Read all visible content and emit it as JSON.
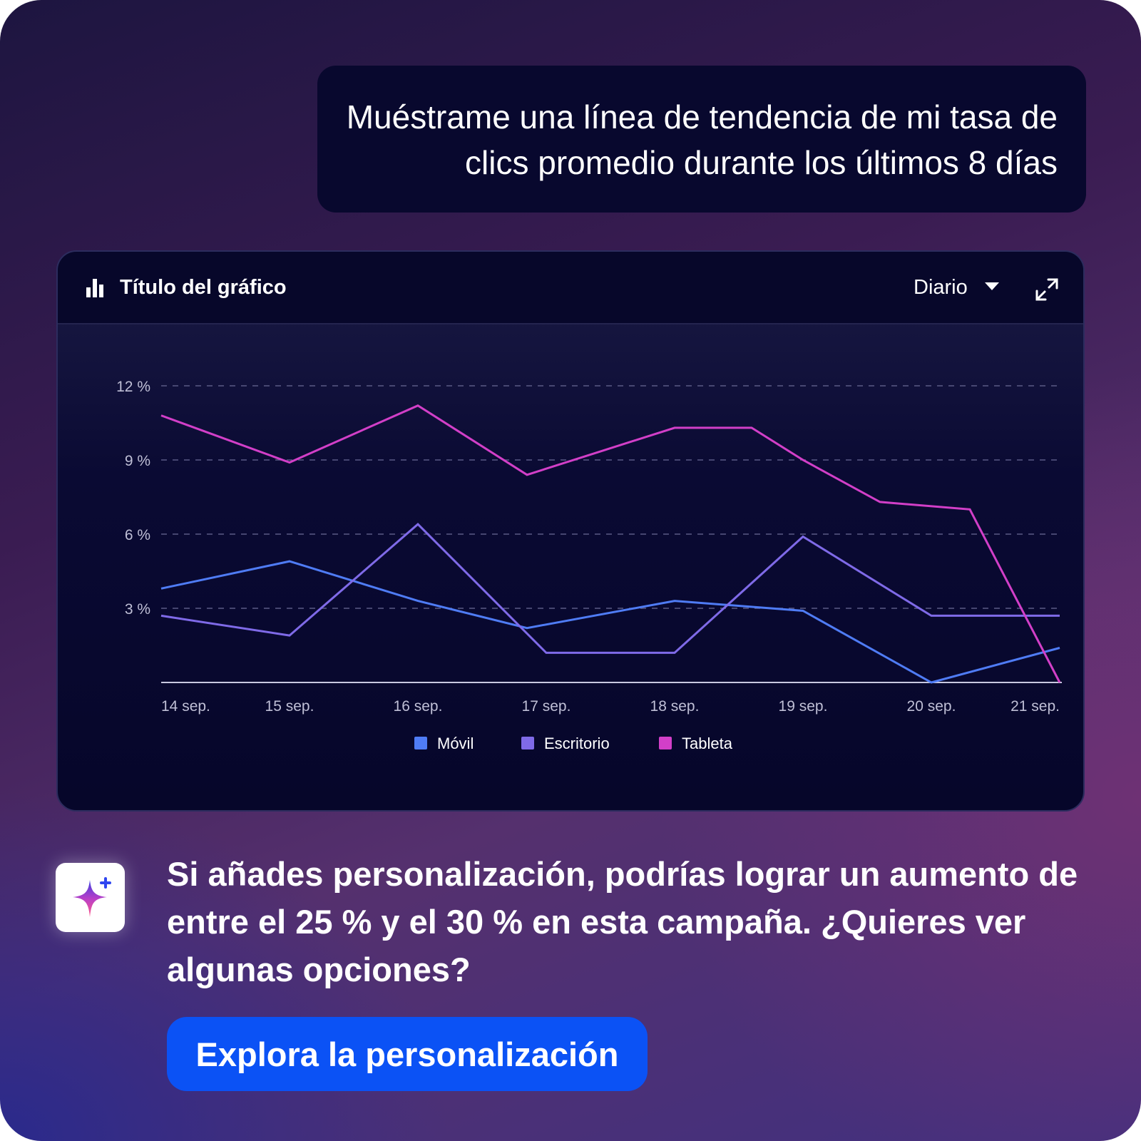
{
  "user_prompt": "Muéstrame una línea de tendencia de mi tasa de clics promedio durante los últimos 8 días",
  "chart_card": {
    "title": "Título del gráfico",
    "period_selected": "Diario"
  },
  "chart_data": {
    "type": "line",
    "title": "Título del gráfico",
    "x": [
      "14 sep.",
      "15 sep.",
      "16 sep.",
      "17 sep.",
      "18 sep.",
      "19 sep.",
      "20 sep.",
      "21 sep."
    ],
    "y_ticks": [
      "3 %",
      "6 %",
      "9 %",
      "12 %"
    ],
    "ylim": [
      0,
      12
    ],
    "grid": "dashed horizontal",
    "legend_position": "bottom",
    "series": [
      {
        "name": "Móvil",
        "color": "#4f7cf5",
        "points": [
          [
            0,
            3.8
          ],
          [
            1,
            4.9
          ],
          [
            2,
            3.3
          ],
          [
            2.85,
            2.2
          ],
          [
            4,
            3.3
          ],
          [
            5,
            2.9
          ],
          [
            6,
            0
          ],
          [
            7,
            1.4
          ]
        ]
      },
      {
        "name": "Escritorio",
        "color": "#7f6ae8",
        "points": [
          [
            0,
            2.7
          ],
          [
            1,
            1.9
          ],
          [
            2,
            6.4
          ],
          [
            3,
            1.2
          ],
          [
            4,
            1.2
          ],
          [
            5,
            5.9
          ],
          [
            6,
            2.7
          ],
          [
            7,
            2.7
          ]
        ]
      },
      {
        "name": "Tableta",
        "color": "#d23fc8",
        "points": [
          [
            0,
            10.8
          ],
          [
            1,
            8.9
          ],
          [
            2,
            11.2
          ],
          [
            2.85,
            8.4
          ],
          [
            4,
            10.3
          ],
          [
            4.6,
            10.3
          ],
          [
            5,
            9.0
          ],
          [
            5.6,
            7.3
          ],
          [
            6.3,
            7.0
          ],
          [
            7,
            0
          ]
        ]
      }
    ]
  },
  "ai_message": "Si añades personalización, podrías lograr un aumento de entre el 25 % y el 30 % en esta campaña. ¿Quieres ver algunas opciones?",
  "cta_label": "Explora la personalización",
  "icons": {
    "chart_icon": "bar-chart-icon",
    "dropdown_icon": "chevron-down-icon",
    "expand_icon": "expand-icon",
    "ai_icon": "sparkle-icon"
  }
}
